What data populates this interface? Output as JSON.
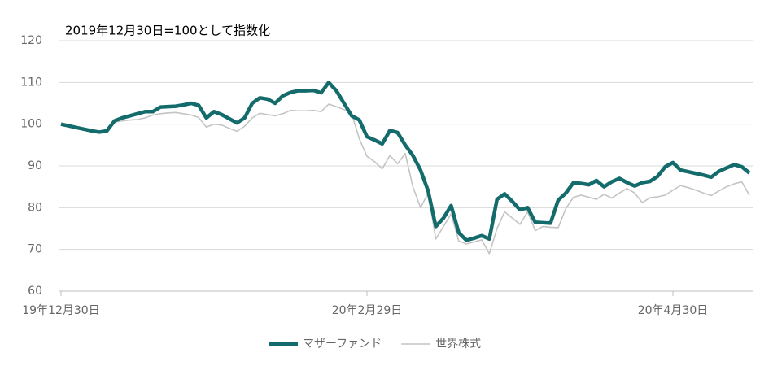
{
  "chart_data": {
    "type": "line",
    "annotation": "2019年12月30日=100として指数化",
    "categories": [
      "19年12月30日",
      null,
      null,
      null,
      null,
      null,
      null,
      null,
      null,
      null,
      null,
      null,
      null,
      null,
      null,
      null,
      null,
      null,
      null,
      null,
      null,
      null,
      null,
      null,
      null,
      null,
      null,
      null,
      null,
      null,
      null,
      null,
      null,
      null,
      null,
      null,
      null,
      null,
      null,
      null,
      "20年2月29日",
      null,
      null,
      null,
      null,
      null,
      null,
      null,
      null,
      null,
      null,
      null,
      null,
      null,
      null,
      null,
      null,
      null,
      null,
      null,
      null,
      null,
      null,
      null,
      null,
      null,
      null,
      null,
      null,
      null,
      null,
      null,
      null,
      null,
      null,
      null,
      null,
      null,
      null,
      null,
      "20年4月30日",
      null,
      null,
      null,
      null,
      null,
      null,
      null,
      null,
      null,
      null
    ],
    "series": [
      {
        "name": "マザーファンド",
        "color": "#146b6b",
        "width": 4.5,
        "values": [
          100,
          99.6,
          99.2,
          98.8,
          98.4,
          98.1,
          98.4,
          100.8,
          101.5,
          102,
          102.5,
          103,
          103,
          104.1,
          104.2,
          104.3,
          104.6,
          105,
          104.5,
          101.5,
          103,
          102.3,
          101.3,
          100.3,
          101.5,
          105,
          106.3,
          106,
          105,
          106.8,
          107.6,
          108,
          108,
          108.1,
          107.5,
          110,
          108,
          105,
          102,
          101,
          97,
          96.2,
          95.3,
          98.5,
          98,
          95,
          92.5,
          89,
          84,
          75.5,
          77.5,
          80.5,
          74,
          72.2,
          72.7,
          73.3,
          72.5,
          82,
          83.3,
          81.5,
          79.5,
          80,
          76.5,
          76.4,
          76.3,
          81.8,
          83.5,
          86,
          85.8,
          85.5,
          86.5,
          85,
          86.2,
          87,
          86,
          85.2,
          86,
          86.3,
          87.5,
          89.8,
          90.8,
          89,
          88.6,
          88.2,
          87.8,
          87.3,
          88.7,
          89.5,
          90.3,
          89.8,
          88.3
        ]
      },
      {
        "name": "世界株式",
        "color": "#c4c4c4",
        "width": 1.6,
        "values": [
          99.8,
          99.4,
          99,
          98.7,
          98.4,
          98.2,
          98.6,
          100.5,
          100.8,
          101,
          101.1,
          101.5,
          102.2,
          102.5,
          102.7,
          102.8,
          102.5,
          102.2,
          101.6,
          99.3,
          100,
          99.8,
          99,
          98.3,
          99.5,
          101.5,
          102.6,
          102.3,
          102,
          102.5,
          103.3,
          103.2,
          103.2,
          103.3,
          103,
          104.8,
          104.2,
          103.5,
          102.5,
          96.5,
          92.3,
          91,
          89.3,
          92.5,
          90.5,
          93,
          85,
          80,
          83.5,
          72.5,
          75.5,
          78.5,
          72,
          71.3,
          71.8,
          72.3,
          69,
          75,
          79,
          77.5,
          76,
          79,
          74.5,
          75.5,
          75.3,
          75.2,
          79.8,
          82.5,
          83,
          82.5,
          82,
          83.2,
          82.3,
          83.5,
          84.6,
          83.5,
          81.2,
          82.4,
          82.6,
          83,
          84.2,
          85.3,
          84.8,
          84.2,
          83.5,
          82.9,
          84,
          85,
          85.7,
          86.2,
          83
        ]
      }
    ],
    "ylim": [
      60,
      120
    ],
    "yticks": [
      60,
      70,
      80,
      90,
      100,
      110,
      120
    ],
    "grid": true,
    "legend": "bottom"
  }
}
